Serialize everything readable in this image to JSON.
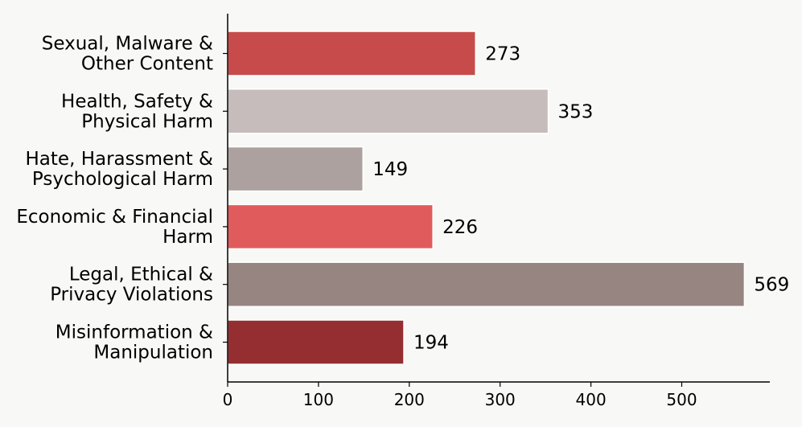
{
  "chart_data": {
    "type": "bar",
    "orientation": "horizontal",
    "categories": [
      [
        "Sexual, Malware &",
        "Other Content"
      ],
      [
        "Health, Safety &",
        "Physical Harm"
      ],
      [
        "Hate, Harassment &",
        "Psychological Harm"
      ],
      [
        "Economic & Financial",
        "Harm"
      ],
      [
        "Legal, Ethical &",
        "Privacy Violations"
      ],
      [
        "Misinformation &",
        "Manipulation"
      ]
    ],
    "values": [
      273,
      353,
      149,
      226,
      569,
      194
    ],
    "data_labels": [
      "273",
      "353",
      "149",
      "226",
      "569",
      "194"
    ],
    "colors": [
      "#c84b4b",
      "#c6bcbc",
      "#ada1a0",
      "#e05c5c",
      "#978582",
      "#952e31"
    ],
    "x_ticks": [
      0,
      100,
      200,
      300,
      400,
      500
    ],
    "x_tick_labels": [
      "0",
      "100",
      "200",
      "300",
      "400",
      "500"
    ],
    "xlim": [
      0,
      600
    ],
    "title": "",
    "xlabel": "",
    "ylabel": "",
    "grid": false,
    "legend": "none"
  }
}
